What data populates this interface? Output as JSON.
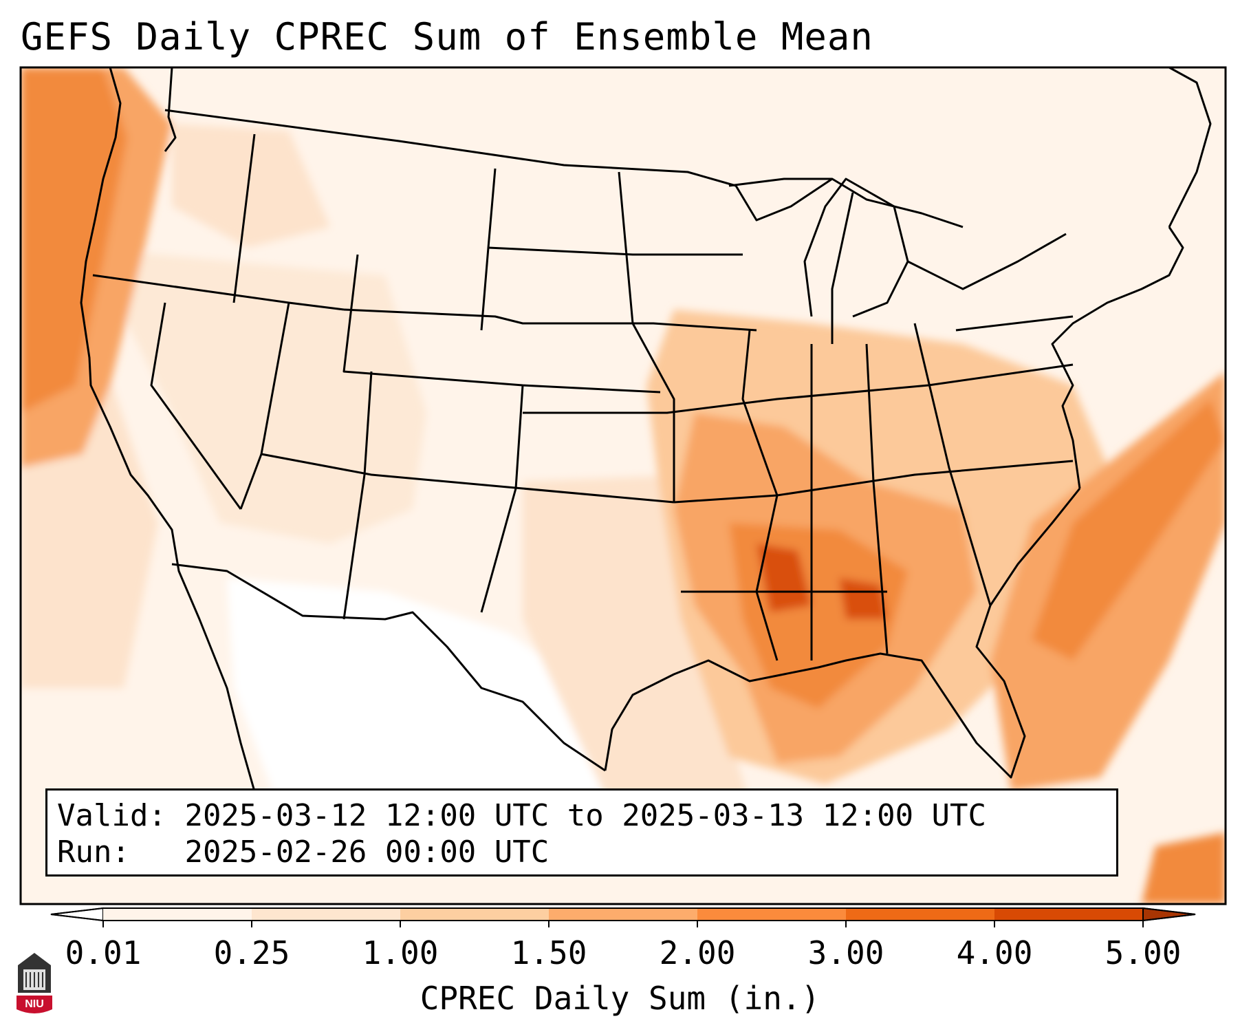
{
  "title": "GEFS Daily CPREC Sum of Ensemble Mean",
  "info": {
    "valid_label": "Valid:",
    "valid_value": "2025-03-12 12:00 UTC to 2025-03-13 12:00 UTC",
    "run_label": "Run:",
    "run_value": "2025-02-26 00:00 UTC"
  },
  "colorbar": {
    "label": "CPREC Daily Sum (in.)",
    "ticks": [
      "0.01",
      "0.25",
      "1.00",
      "1.50",
      "2.00",
      "3.00",
      "4.00",
      "5.00"
    ],
    "colors": [
      "#fff4ea",
      "#fee6cf",
      "#fdcfa1",
      "#fdac6c",
      "#fb8b3c",
      "#ee6a16",
      "#d84a04",
      "#a83503"
    ],
    "under_color": "#ffffff",
    "extend": "both"
  },
  "map": {
    "region": "Continental United States",
    "field": "CPREC daily sum",
    "heaviest_area": "Southeastern US (Mississippi, Alabama, Gulf Coast)",
    "colors": {
      "border": "#000000",
      "light": "#fff4ea",
      "low": "#fde3cc",
      "mid": "#fcc99a",
      "high": "#f8a565",
      "higher": "#f28a3c",
      "max": "#d9500e"
    }
  },
  "logo": {
    "text": "NIU",
    "icon": "niu-logo-icon",
    "colors": {
      "red": "#c8102e",
      "dark": "#333333"
    }
  }
}
